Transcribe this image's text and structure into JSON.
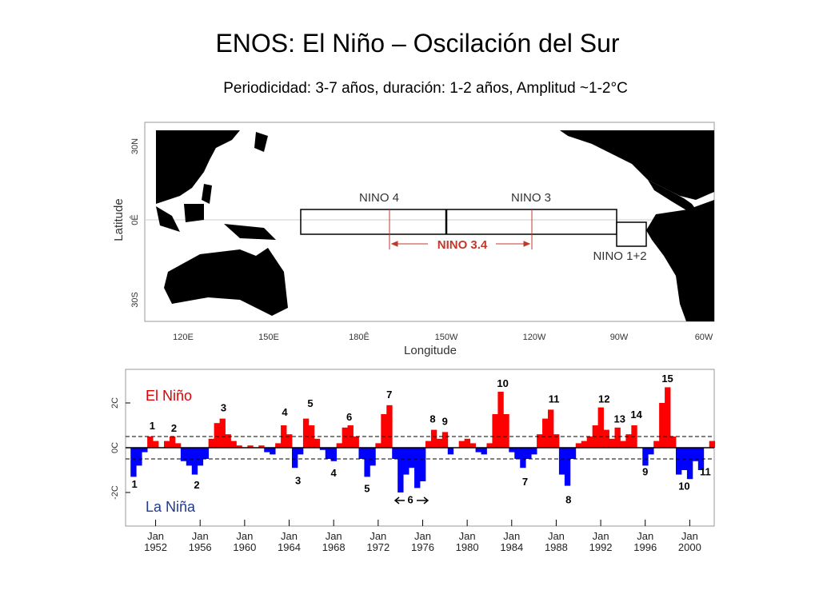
{
  "slide": {
    "title": "ENOS: El Niño – Oscilación del Sur",
    "subtitle": "Periodicidad: 3-7 años, duración: 1-2 años, Amplitud ~1-2°C"
  },
  "map": {
    "regions": [
      "NINO 4",
      "NINO 3",
      "NINO 3.4",
      "NINO 1+2"
    ],
    "ylabel": "Latitude",
    "xlabel": "Longitude",
    "lat_ticks": [
      "30N",
      "0Ê",
      "30S"
    ],
    "lon_ticks": [
      "120E",
      "150E",
      "180Ê",
      "150W",
      "120W",
      "90W",
      "60W"
    ]
  },
  "chart_data": {
    "type": "area",
    "labels": {
      "pos": "El Niño",
      "neg": "La Niña"
    },
    "pos_color": "#ff0000",
    "neg_color": "#0000ff",
    "xlim": [
      1949.3,
      2002.2
    ],
    "ylim": [
      -3.5,
      3.5
    ],
    "xticks": [
      {
        "value": 1952,
        "label": "Jan\n1952"
      },
      {
        "value": 1956,
        "label": "Jan\n1956"
      },
      {
        "value": 1960,
        "label": "Jan\n1960"
      },
      {
        "value": 1964,
        "label": "Jan\n1964"
      },
      {
        "value": 1968,
        "label": "Jan\n1968"
      },
      {
        "value": 1972,
        "label": "Jan\n1972"
      },
      {
        "value": 1976,
        "label": "Jan\n1976"
      },
      {
        "value": 1980,
        "label": "Jan\n1980"
      },
      {
        "value": 1984,
        "label": "Jan\n1984"
      },
      {
        "value": 1988,
        "label": "Jan\n1988"
      },
      {
        "value": 1992,
        "label": "Jan\n1992"
      },
      {
        "value": 1996,
        "label": "Jan\n1996"
      },
      {
        "value": 2000,
        "label": "Jan\n2000"
      }
    ],
    "yticks": [
      {
        "value": 2,
        "label": "2C"
      },
      {
        "value": 0,
        "label": "0C"
      },
      {
        "value": -2,
        "label": "-2C"
      }
    ],
    "thresholds": [
      0.5,
      -0.5
    ],
    "x": [
      1950,
      1950.5,
      1951,
      1951.5,
      1952,
      1952.5,
      1953,
      1953.5,
      1954,
      1954.5,
      1955,
      1955.5,
      1956,
      1956.5,
      1957,
      1957.5,
      1958,
      1958.5,
      1959,
      1959.5,
      1960,
      1960.5,
      1961,
      1961.5,
      1962,
      1962.5,
      1963,
      1963.5,
      1964,
      1964.5,
      1965,
      1965.5,
      1966,
      1966.5,
      1967,
      1967.5,
      1968,
      1968.5,
      1969,
      1969.5,
      1970,
      1970.5,
      1971,
      1971.5,
      1972,
      1972.5,
      1973,
      1973.5,
      1974,
      1974.5,
      1975,
      1975.5,
      1976,
      1976.5,
      1977,
      1977.5,
      1978,
      1978.5,
      1979,
      1979.5,
      1980,
      1980.5,
      1981,
      1981.5,
      1982,
      1982.5,
      1983,
      1983.5,
      1984,
      1984.5,
      1985,
      1985.5,
      1986,
      1986.5,
      1987,
      1987.5,
      1988,
      1988.5,
      1989,
      1989.5,
      1990,
      1990.5,
      1991,
      1991.5,
      1992,
      1992.5,
      1993,
      1993.5,
      1994,
      1994.5,
      1995,
      1995.5,
      1996,
      1996.5,
      1997,
      1997.5,
      1998,
      1998.5,
      1999,
      1999.5,
      2000,
      2000.5,
      2001,
      2001.5,
      2002
    ],
    "values": [
      -1.3,
      -0.8,
      -0.2,
      0.5,
      0.3,
      0.0,
      0.3,
      0.5,
      0.2,
      -0.6,
      -0.8,
      -1.2,
      -0.8,
      -0.5,
      0.4,
      1.1,
      1.3,
      0.6,
      0.3,
      0.1,
      0.0,
      0.1,
      0.0,
      0.1,
      -0.2,
      -0.3,
      0.2,
      1.0,
      0.6,
      -0.9,
      -0.3,
      1.3,
      1.0,
      0.4,
      -0.1,
      -0.5,
      -0.6,
      0.2,
      0.9,
      1.0,
      0.5,
      -0.5,
      -1.3,
      -0.8,
      0.2,
      1.5,
      1.9,
      -0.5,
      -2.0,
      -1.2,
      -0.9,
      -1.8,
      -1.5,
      0.3,
      0.8,
      0.4,
      0.7,
      -0.3,
      0.0,
      0.3,
      0.4,
      0.2,
      -0.2,
      -0.3,
      0.2,
      1.5,
      2.5,
      1.5,
      -0.2,
      -0.5,
      -0.9,
      -0.5,
      -0.3,
      0.6,
      1.3,
      1.7,
      0.6,
      -1.2,
      -1.7,
      -0.5,
      0.2,
      0.3,
      0.5,
      1.0,
      1.8,
      0.8,
      0.4,
      0.9,
      0.3,
      0.6,
      1.0,
      0.0,
      -0.8,
      -0.3,
      0.3,
      2.0,
      2.7,
      0.5,
      -1.2,
      -1.0,
      -1.4,
      -0.6,
      -1.0,
      0.0,
      0.3
    ],
    "annotations": [
      {
        "text": "1",
        "x": 1951.7,
        "y": 1.0
      },
      {
        "text": "2",
        "x": 1953.65,
        "y": 0.9
      },
      {
        "text": "3",
        "x": 1958.1,
        "y": 1.8
      },
      {
        "text": "4",
        "x": 1963.6,
        "y": 1.6
      },
      {
        "text": "5",
        "x": 1965.9,
        "y": 2.0
      },
      {
        "text": "6",
        "x": 1969.4,
        "y": 1.4
      },
      {
        "text": "7",
        "x": 1973.0,
        "y": 2.4
      },
      {
        "text": "8",
        "x": 1976.9,
        "y": 1.3
      },
      {
        "text": "9",
        "x": 1978.0,
        "y": 1.2
      },
      {
        "text": "10",
        "x": 1983.2,
        "y": 2.9
      },
      {
        "text": "11",
        "x": 1987.8,
        "y": 2.2
      },
      {
        "text": "12",
        "x": 1992.3,
        "y": 2.2
      },
      {
        "text": "13",
        "x": 1993.7,
        "y": 1.3
      },
      {
        "text": "14",
        "x": 1995.2,
        "y": 1.5
      },
      {
        "text": "15",
        "x": 1998.0,
        "y": 3.1
      },
      {
        "text": "1",
        "x": 1950.1,
        "y": -1.6
      },
      {
        "text": "2",
        "x": 1955.7,
        "y": -1.65
      },
      {
        "text": "3",
        "x": 1964.8,
        "y": -1.45
      },
      {
        "text": "4",
        "x": 1968.0,
        "y": -1.1
      },
      {
        "text": "5",
        "x": 1971.0,
        "y": -1.8
      },
      {
        "text": "6",
        "x": 1974.9,
        "y": -2.3
      },
      {
        "text": "7",
        "x": 1985.2,
        "y": -1.5
      },
      {
        "text": "8",
        "x": 1989.1,
        "y": -2.3
      },
      {
        "text": "9",
        "x": 1996.0,
        "y": -1.05
      },
      {
        "text": "10",
        "x": 1999.5,
        "y": -1.7
      },
      {
        "text": "11",
        "x": 2001.4,
        "y": -1.05
      }
    ]
  }
}
